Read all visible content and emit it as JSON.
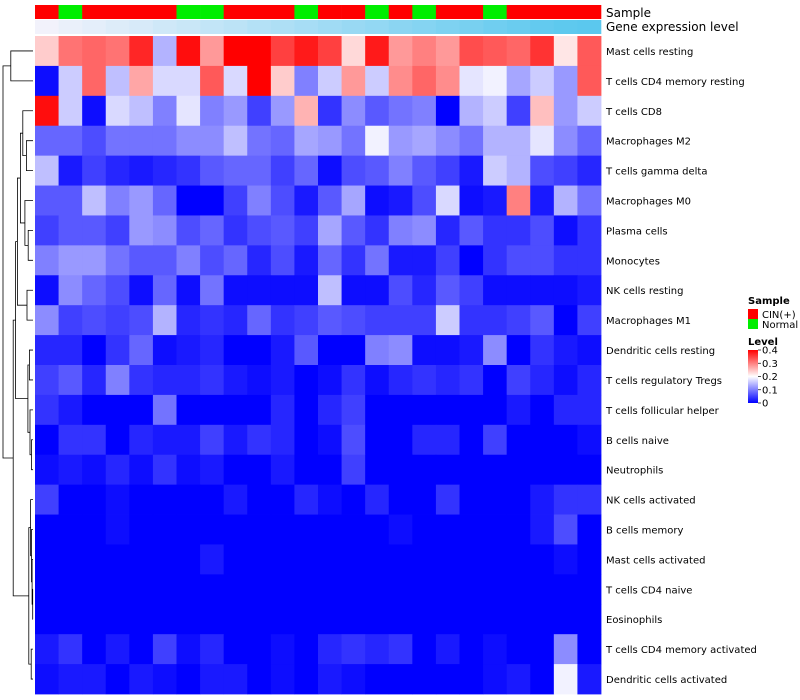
{
  "chart_data": {
    "type": "heatmap",
    "annotations": [
      {
        "title": "Sample",
        "values": [
          "CIN(+)",
          "Normal",
          "CIN(+)",
          "CIN(+)",
          "CIN(+)",
          "CIN(+)",
          "Normal",
          "Normal",
          "CIN(+)",
          "CIN(+)",
          "CIN(+)",
          "Normal",
          "CIN(+)",
          "CIN(+)",
          "Normal",
          "CIN(+)",
          "Normal",
          "CIN(+)",
          "CIN(+)",
          "Normal",
          "CIN(+)",
          "CIN(+)",
          "CIN(+)",
          "CIN(+)"
        ]
      },
      {
        "title": "Gene expression level",
        "values": [
          0.0,
          0.05,
          0.09,
          0.14,
          0.18,
          0.23,
          0.27,
          0.32,
          0.36,
          0.41,
          0.45,
          0.5,
          0.54,
          0.59,
          0.63,
          0.68,
          0.72,
          0.77,
          0.81,
          0.86,
          0.9,
          0.95,
          0.98,
          1.0
        ]
      }
    ],
    "rows": [
      "Mast cells resting",
      "T cells CD4 memory resting",
      "T cells CD8",
      "Macrophages M2",
      "T cells gamma delta",
      "Macrophages M0",
      "Plasma cells",
      "Monocytes",
      "NK cells resting",
      "Macrophages M1",
      "Dendritic cells resting",
      "T cells regulatory  Tregs",
      "T cells follicular helper",
      "B cells naive",
      "Neutrophils",
      "NK cells activated",
      "B cells memory",
      "Mast cells activated",
      "T cells CD4 naive",
      "Eosinophils",
      "T cells CD4 memory activated",
      "Dendritic cells activated"
    ],
    "values": [
      [
        0.24,
        0.31,
        0.32,
        0.31,
        0.37,
        0.14,
        0.39,
        0.28,
        0.4,
        0.4,
        0.35,
        0.38,
        0.35,
        0.23,
        0.38,
        0.28,
        0.3,
        0.28,
        0.34,
        0.33,
        0.32,
        0.36,
        0.22,
        0.33
      ],
      [
        0.01,
        0.16,
        0.32,
        0.15,
        0.27,
        0.17,
        0.17,
        0.33,
        0.17,
        0.4,
        0.24,
        0.1,
        0.16,
        0.28,
        0.16,
        0.29,
        0.32,
        0.29,
        0.18,
        0.19,
        0.13,
        0.16,
        0.12,
        0.33
      ],
      [
        0.39,
        0.16,
        0.01,
        0.17,
        0.15,
        0.1,
        0.18,
        0.1,
        0.12,
        0.05,
        0.12,
        0.26,
        0.04,
        0.11,
        0.07,
        0.09,
        0.1,
        0.0,
        0.14,
        0.16,
        0.05,
        0.25,
        0.12,
        0.16
      ],
      [
        0.08,
        0.08,
        0.06,
        0.09,
        0.09,
        0.09,
        0.11,
        0.11,
        0.15,
        0.09,
        0.08,
        0.13,
        0.12,
        0.09,
        0.19,
        0.12,
        0.13,
        0.11,
        0.09,
        0.14,
        0.14,
        0.18,
        0.11,
        0.08
      ],
      [
        0.15,
        0.02,
        0.05,
        0.03,
        0.02,
        0.03,
        0.04,
        0.07,
        0.08,
        0.08,
        0.05,
        0.08,
        0.01,
        0.06,
        0.07,
        0.1,
        0.07,
        0.05,
        0.02,
        0.16,
        0.14,
        0.06,
        0.05,
        0.03
      ],
      [
        0.07,
        0.07,
        0.15,
        0.1,
        0.12,
        0.08,
        0.0,
        0.0,
        0.05,
        0.1,
        0.06,
        0.02,
        0.07,
        0.13,
        0.01,
        0.02,
        0.06,
        0.17,
        0.01,
        0.02,
        0.3,
        0.02,
        0.14,
        0.09
      ],
      [
        0.05,
        0.07,
        0.07,
        0.05,
        0.12,
        0.11,
        0.06,
        0.08,
        0.04,
        0.06,
        0.07,
        0.05,
        0.13,
        0.07,
        0.04,
        0.1,
        0.11,
        0.03,
        0.07,
        0.04,
        0.04,
        0.06,
        0.01,
        0.04
      ],
      [
        0.1,
        0.12,
        0.12,
        0.09,
        0.07,
        0.07,
        0.1,
        0.06,
        0.08,
        0.03,
        0.06,
        0.02,
        0.08,
        0.04,
        0.09,
        0.02,
        0.02,
        0.05,
        0.0,
        0.04,
        0.06,
        0.06,
        0.04,
        0.04
      ],
      [
        0.01,
        0.11,
        0.08,
        0.06,
        0.01,
        0.08,
        0.01,
        0.09,
        0.01,
        0.01,
        0.01,
        0.01,
        0.15,
        0.01,
        0.01,
        0.06,
        0.03,
        0.07,
        0.05,
        0.01,
        0.01,
        0.01,
        0.01,
        0.02
      ],
      [
        0.11,
        0.05,
        0.06,
        0.05,
        0.06,
        0.14,
        0.03,
        0.04,
        0.03,
        0.08,
        0.04,
        0.05,
        0.07,
        0.06,
        0.05,
        0.05,
        0.05,
        0.16,
        0.04,
        0.04,
        0.05,
        0.07,
        0.0,
        0.05
      ],
      [
        0.03,
        0.03,
        0.0,
        0.04,
        0.08,
        0.01,
        0.02,
        0.03,
        0.0,
        0.0,
        0.02,
        0.07,
        0.0,
        0.0,
        0.1,
        0.11,
        0.01,
        0.01,
        0.02,
        0.11,
        0.0,
        0.04,
        0.02,
        0.01
      ],
      [
        0.05,
        0.07,
        0.03,
        0.1,
        0.04,
        0.03,
        0.03,
        0.04,
        0.02,
        0.01,
        0.02,
        0.0,
        0.01,
        0.04,
        0.01,
        0.03,
        0.04,
        0.03,
        0.04,
        0.0,
        0.05,
        0.03,
        0.01,
        0.03
      ],
      [
        0.04,
        0.02,
        0.0,
        0.0,
        0.0,
        0.09,
        0.0,
        0.0,
        0.0,
        0.0,
        0.03,
        0.0,
        0.03,
        0.05,
        0.0,
        0.0,
        0.0,
        0.0,
        0.0,
        0.0,
        0.02,
        0.0,
        0.03,
        0.03
      ],
      [
        0.0,
        0.04,
        0.04,
        0.0,
        0.03,
        0.02,
        0.02,
        0.05,
        0.02,
        0.04,
        0.03,
        0.0,
        0.01,
        0.06,
        0.0,
        0.0,
        0.03,
        0.03,
        0.0,
        0.05,
        0.0,
        0.0,
        0.0,
        0.01
      ],
      [
        0.01,
        0.02,
        0.01,
        0.03,
        0.01,
        0.04,
        0.01,
        0.02,
        0.0,
        0.0,
        0.02,
        0.0,
        0.0,
        0.05,
        0.0,
        0.0,
        0.0,
        0.0,
        0.0,
        0.0,
        0.0,
        0.0,
        0.0,
        0.0
      ],
      [
        0.05,
        0.0,
        0.0,
        0.01,
        0.0,
        0.0,
        0.0,
        0.0,
        0.02,
        0.0,
        0.0,
        0.03,
        0.01,
        0.0,
        0.03,
        0.0,
        0.0,
        0.04,
        0.0,
        0.0,
        0.0,
        0.02,
        0.04,
        0.04
      ],
      [
        0.0,
        0.0,
        0.0,
        0.01,
        0.0,
        0.0,
        0.0,
        0.0,
        0.0,
        0.0,
        0.0,
        0.0,
        0.0,
        0.0,
        0.0,
        0.01,
        0.0,
        0.0,
        0.0,
        0.0,
        0.0,
        0.02,
        0.06,
        0.0
      ],
      [
        0.0,
        0.0,
        0.0,
        0.0,
        0.0,
        0.0,
        0.0,
        0.02,
        0.0,
        0.0,
        0.0,
        0.0,
        0.0,
        0.0,
        0.0,
        0.0,
        0.0,
        0.0,
        0.0,
        0.0,
        0.0,
        0.0,
        0.01,
        0.0
      ],
      [
        0.0,
        0.0,
        0.0,
        0.0,
        0.0,
        0.0,
        0.0,
        0.0,
        0.0,
        0.0,
        0.0,
        0.0,
        0.0,
        0.0,
        0.0,
        0.0,
        0.0,
        0.0,
        0.0,
        0.0,
        0.0,
        0.0,
        0.0,
        0.0
      ],
      [
        0.0,
        0.0,
        0.0,
        0.0,
        0.0,
        0.0,
        0.0,
        0.0,
        0.0,
        0.0,
        0.0,
        0.0,
        0.0,
        0.0,
        0.0,
        0.0,
        0.0,
        0.0,
        0.0,
        0.0,
        0.0,
        0.0,
        0.0,
        0.0
      ],
      [
        0.02,
        0.04,
        0.0,
        0.02,
        0.0,
        0.05,
        0.01,
        0.03,
        0.0,
        0.0,
        0.01,
        0.0,
        0.03,
        0.04,
        0.03,
        0.04,
        0.0,
        0.02,
        0.0,
        0.01,
        0.0,
        0.0,
        0.11,
        0.0
      ],
      [
        0.01,
        0.02,
        0.02,
        0.0,
        0.02,
        0.01,
        0.0,
        0.02,
        0.02,
        0.0,
        0.01,
        0.0,
        0.02,
        0.01,
        0.0,
        0.0,
        0.0,
        0.0,
        0.0,
        0.01,
        0.02,
        0.0,
        0.19,
        0.02
      ]
    ],
    "legends": {
      "sample": {
        "title": "Sample",
        "entries": [
          "CIN(+)",
          "Normal"
        ],
        "colors": [
          "#ff0000",
          "#00ee00"
        ]
      },
      "level": {
        "title": "Level",
        "range": [
          0,
          0.4
        ],
        "ticks": [
          "0.4",
          "0.3",
          "0.2",
          "0.1",
          "0"
        ],
        "colors": [
          "#0000ff",
          "#ffffff",
          "#ff0000"
        ]
      }
    },
    "expression_colors": [
      "#f2f2fb",
      "#5bc8ee"
    ],
    "xlabel": "",
    "ylabel": "",
    "legend_position": "right"
  }
}
